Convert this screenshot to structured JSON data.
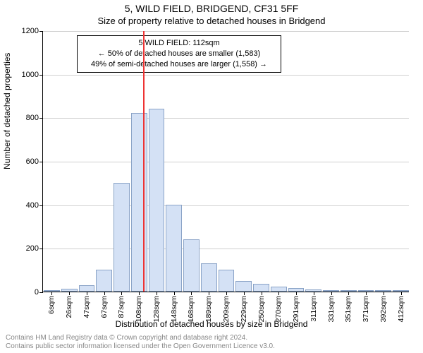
{
  "titles": {
    "main": "5, WILD FIELD, BRIDGEND, CF31 5FF",
    "sub": "Size of property relative to detached houses in Bridgend",
    "ylabel": "Number of detached properties",
    "xlabel": "Distribution of detached houses by size in Bridgend"
  },
  "footer": {
    "line1": "Contains HM Land Registry data © Crown copyright and database right 2024.",
    "line2": "Contains public sector information licensed under the Open Government Licence v3.0."
  },
  "chart": {
    "type": "histogram",
    "ylim": [
      0,
      1200
    ],
    "yticks": [
      0,
      200,
      400,
      600,
      800,
      1000,
      1200
    ],
    "grid_color": "#d0d0d0",
    "bar_fill": "#d4e1f5",
    "bar_border": "#8aa3c7",
    "background": "#ffffff",
    "ref_line": {
      "x_value": 112,
      "color": "#ee3333",
      "width": 2
    },
    "callout": {
      "line1": "5 WILD FIELD: 112sqm",
      "line2": "← 50% of detached houses are smaller (1,583)",
      "line3": "49% of semi-detached houses are larger (1,558) →"
    },
    "bins": [
      {
        "label": "6sqm",
        "x": 6,
        "value": 6
      },
      {
        "label": "26sqm",
        "x": 26,
        "value": 12
      },
      {
        "label": "47sqm",
        "x": 47,
        "value": 30
      },
      {
        "label": "67sqm",
        "x": 67,
        "value": 100
      },
      {
        "label": "87sqm",
        "x": 87,
        "value": 500
      },
      {
        "label": "108sqm",
        "x": 108,
        "value": 820
      },
      {
        "label": "128sqm",
        "x": 128,
        "value": 840
      },
      {
        "label": "148sqm",
        "x": 148,
        "value": 400
      },
      {
        "label": "168sqm",
        "x": 168,
        "value": 240
      },
      {
        "label": "189sqm",
        "x": 189,
        "value": 130
      },
      {
        "label": "209sqm",
        "x": 209,
        "value": 100
      },
      {
        "label": "229sqm",
        "x": 229,
        "value": 50
      },
      {
        "label": "250sqm",
        "x": 250,
        "value": 35
      },
      {
        "label": "270sqm",
        "x": 270,
        "value": 22
      },
      {
        "label": "291sqm",
        "x": 291,
        "value": 15
      },
      {
        "label": "311sqm",
        "x": 311,
        "value": 10
      },
      {
        "label": "331sqm",
        "x": 331,
        "value": 8
      },
      {
        "label": "351sqm",
        "x": 351,
        "value": 6
      },
      {
        "label": "371sqm",
        "x": 371,
        "value": 6
      },
      {
        "label": "392sqm",
        "x": 392,
        "value": 5
      },
      {
        "label": "412sqm",
        "x": 412,
        "value": 5
      }
    ],
    "x_min": 6,
    "x_max": 412
  }
}
